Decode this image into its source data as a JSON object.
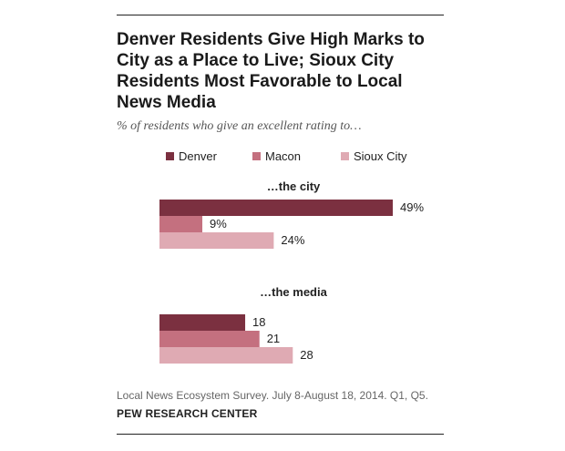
{
  "header": {
    "title": "Denver Residents Give High Marks to City as a Place to Live; Sioux City Residents Most Favorable to Local News Media",
    "subtitle": "% of residents who give an excellent rating to…"
  },
  "legend": [
    {
      "label": "Denver",
      "color": "#7b3040"
    },
    {
      "label": "Macon",
      "color": "#c4707f"
    },
    {
      "label": "Sioux City",
      "color": "#dfaab3"
    }
  ],
  "chart_data": {
    "type": "bar",
    "orientation": "horizontal",
    "groups": [
      {
        "label": "…the city",
        "values": [
          49,
          9,
          24
        ],
        "value_labels": [
          "49%",
          "9%",
          "24%"
        ]
      },
      {
        "label": "…the media",
        "values": [
          18,
          21,
          28
        ],
        "value_labels": [
          "18",
          "21",
          "28"
        ]
      }
    ],
    "series": [
      "Denver",
      "Macon",
      "Sioux City"
    ],
    "xlim": [
      0,
      60
    ],
    "grid": false,
    "legend_position": "top"
  },
  "footer": {
    "source": "Local News Ecosystem Survey. July 8-August 18, 2014. Q1, Q5.",
    "org": "PEW RESEARCH CENTER"
  }
}
